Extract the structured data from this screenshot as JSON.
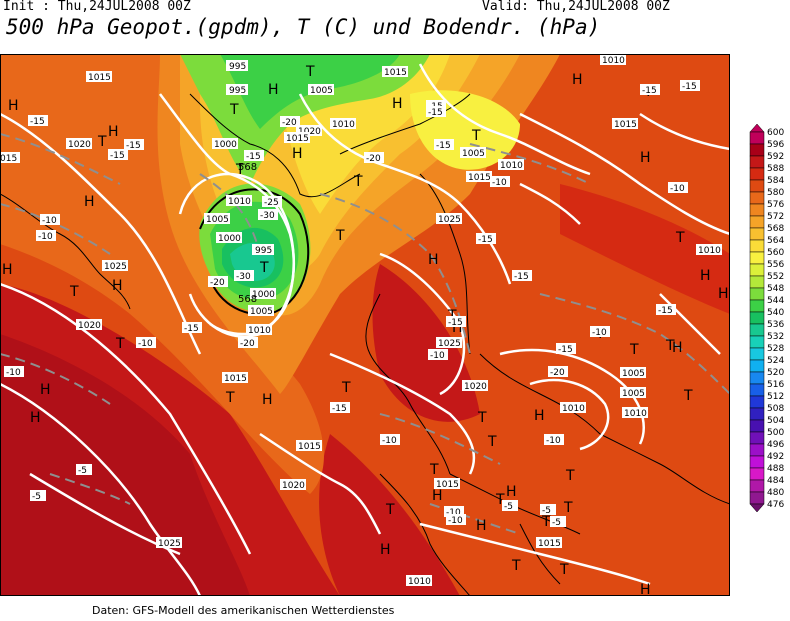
{
  "header": {
    "init": "Init : Thu,24JUL2008 00Z",
    "valid": "Valid: Thu,24JUL2008 00Z",
    "title": "500 hPa Geopot.(gpdm), T (C) und Bodendr. (hPa)"
  },
  "footer": "Daten: GFS-Modell des amerikanischen Wetterdienstes",
  "legend": {
    "values": [
      "600",
      "596",
      "592",
      "588",
      "584",
      "580",
      "576",
      "572",
      "568",
      "564",
      "560",
      "556",
      "552",
      "548",
      "544",
      "540",
      "536",
      "532",
      "528",
      "524",
      "520",
      "516",
      "512",
      "508",
      "504",
      "500",
      "496",
      "492",
      "488",
      "484",
      "480",
      "476"
    ],
    "colors": [
      "#c0005a",
      "#a80018",
      "#c41818",
      "#d52a12",
      "#de4a12",
      "#e8681a",
      "#ef8620",
      "#f5a428",
      "#f8c030",
      "#fadc38",
      "#f8f040",
      "#dcf03a",
      "#b4e83a",
      "#7cdc3c",
      "#3cd046",
      "#18c060",
      "#18c890",
      "#18d0b8",
      "#18c8e0",
      "#10b0f0",
      "#1888f0",
      "#1860e8",
      "#2038d8",
      "#3020c0",
      "#4810b0",
      "#7010b8",
      "#9c10c8",
      "#c010d8",
      "#d818c8",
      "#b018a8",
      "#901890",
      "#6a106a"
    ],
    "colors_note": "top to bottom"
  },
  "map_labels": {
    "highs": [
      "H",
      "H",
      "H",
      "H",
      "H",
      "H",
      "H",
      "H",
      "H",
      "H",
      "H",
      "H",
      "H",
      "H",
      "H",
      "H",
      "H",
      "H",
      "H",
      "H",
      "H",
      "H",
      "H",
      "H"
    ],
    "lows": [
      "T",
      "T",
      "T",
      "T",
      "T",
      "T",
      "T",
      "T",
      "T",
      "T",
      "T",
      "T",
      "T",
      "T",
      "T",
      "T",
      "T",
      "T",
      "T",
      "T",
      "T",
      "T",
      "T",
      "T",
      "T",
      "T",
      "T",
      "T",
      "T"
    ],
    "pressure_labels": [
      "1015",
      "995",
      "995",
      "1005",
      "1020",
      "1010",
      "1015",
      "1000",
      "1010",
      "1005",
      "1020",
      "1005",
      "1015",
      "1010",
      "1025",
      "1025",
      "1020",
      "1015",
      "1000",
      "995",
      "1000",
      "1005",
      "1010",
      "1015",
      "1020",
      "1025",
      "1005",
      "1010",
      "1015",
      "1020",
      "1025",
      "1010",
      "1015",
      "1005",
      "1010",
      "1015",
      "1010",
      "1025",
      "1015",
      "1005",
      "1010"
    ],
    "temperature_labels": [
      "-15",
      "-15",
      "-15",
      "-20",
      "-15",
      "-15",
      "-15",
      "-15",
      "-10",
      "-10",
      "-20",
      "-25",
      "-30",
      "-30",
      "-15",
      "-20",
      "-15",
      "-10",
      "-15",
      "-10",
      "-20",
      "-15",
      "-10",
      "-15",
      "-10",
      "-10",
      "-15",
      "-15",
      "-5",
      "-5",
      "-10",
      "-10",
      "-5",
      "-5",
      "-10",
      "-10",
      "-10",
      "-20",
      "-15",
      "-10",
      "-15"
    ],
    "contour_labels": [
      "568",
      "568"
    ]
  }
}
